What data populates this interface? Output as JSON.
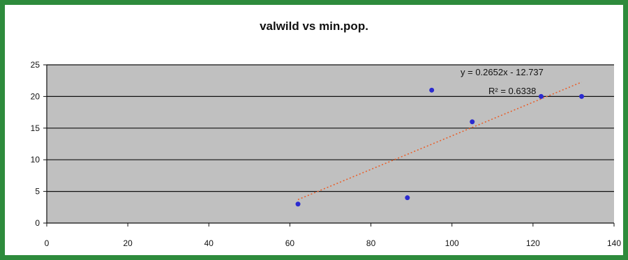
{
  "chart_data": {
    "type": "scatter",
    "title": "valwild vs min.pop.",
    "xlabel": "",
    "ylabel": "",
    "xlim": [
      0,
      140
    ],
    "ylim": [
      0,
      25
    ],
    "xticks": [
      0,
      20,
      40,
      60,
      80,
      100,
      120,
      140
    ],
    "yticks": [
      0,
      5,
      10,
      15,
      20,
      25
    ],
    "grid": "horizontal",
    "legend": "none",
    "series": [
      {
        "x": [
          62,
          89,
          95,
          105,
          122,
          132
        ],
        "y": [
          3,
          4,
          21,
          16,
          20,
          20
        ],
        "color": "#2b2bd0"
      }
    ],
    "trendline": {
      "type": "linear",
      "slope": 0.2652,
      "intercept": -12.737,
      "x_range": [
        62,
        132
      ],
      "color": "#e8602c",
      "equation_label": "y = 0.2652x - 12.737",
      "r2_label": "R² = 0.6338"
    },
    "colors": {
      "plot_background": "#c0c0c0",
      "gridline": "#111111",
      "frame_border": "#2e8b3c"
    }
  }
}
